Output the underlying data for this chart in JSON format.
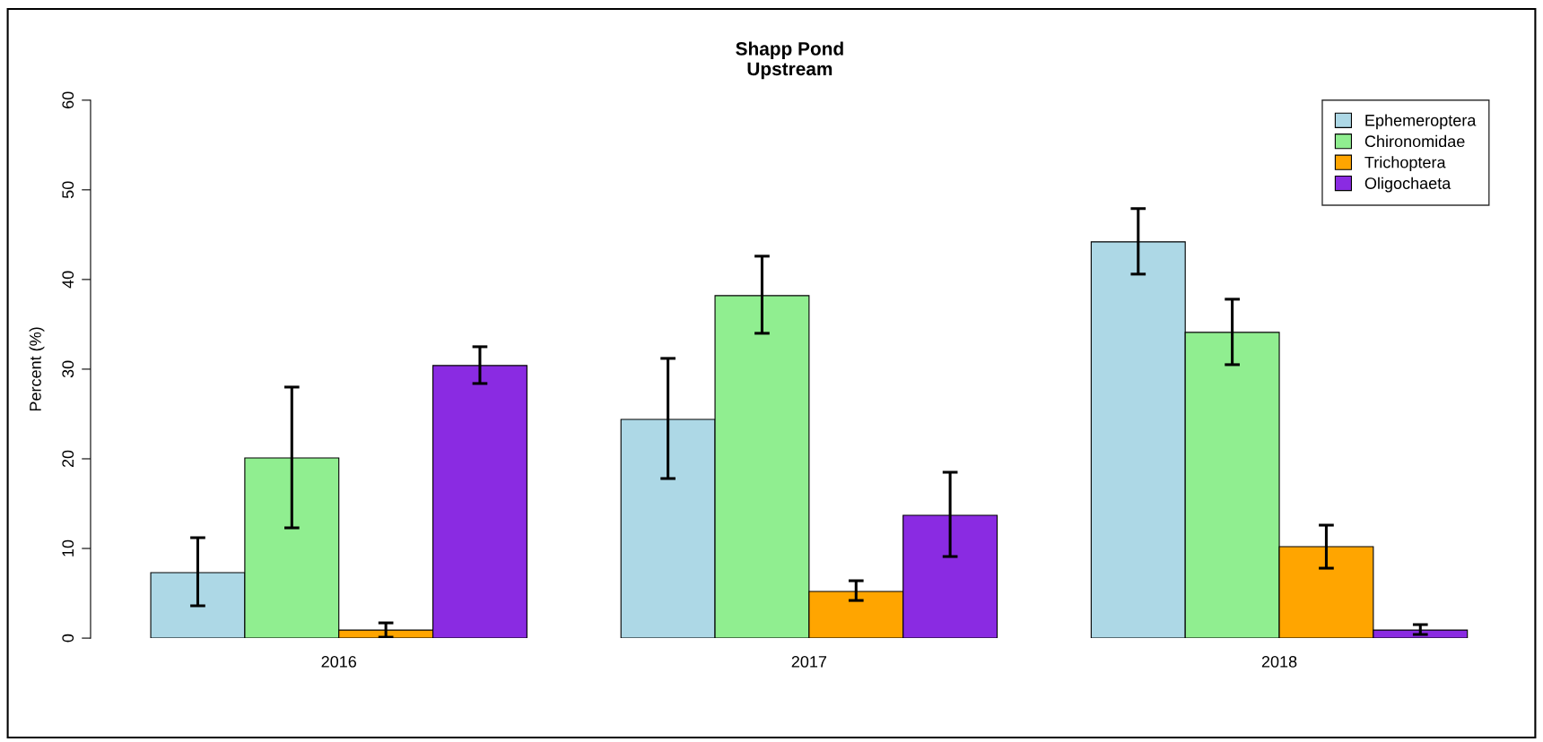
{
  "chart_data": {
    "type": "bar",
    "title": "Shapp Pond\nUpstream",
    "ylabel": "Percent (%)",
    "categories": [
      "2016",
      "2017",
      "2018"
    ],
    "series": [
      {
        "name": "Ephemeroptera",
        "color": "#add8e6",
        "values": [
          7.3,
          24.4,
          44.2
        ],
        "errors": [
          [
            3.6,
            11.2
          ],
          [
            17.8,
            31.2
          ],
          [
            40.6,
            47.9
          ]
        ]
      },
      {
        "name": "Chironomidae",
        "color": "#90ee90",
        "values": [
          20.1,
          38.2,
          34.1
        ],
        "errors": [
          [
            12.3,
            28.0
          ],
          [
            34.0,
            42.6
          ],
          [
            30.5,
            37.8
          ]
        ]
      },
      {
        "name": "Trichoptera",
        "color": "#ffa500",
        "values": [
          0.9,
          5.2,
          10.2
        ],
        "errors": [
          [
            0.1,
            1.7
          ],
          [
            4.2,
            6.4
          ],
          [
            7.8,
            12.6
          ]
        ]
      },
      {
        "name": "Oligochaeta",
        "color": "#8a2be2",
        "values": [
          30.4,
          13.7,
          0.9
        ],
        "errors": [
          [
            28.4,
            32.5
          ],
          [
            9.1,
            18.5
          ],
          [
            0.4,
            1.5
          ]
        ]
      }
    ],
    "ylim": [
      0,
      60
    ],
    "yticks": [
      0,
      10,
      20,
      30,
      40,
      50,
      60
    ],
    "grid": false,
    "legend": "top right"
  }
}
